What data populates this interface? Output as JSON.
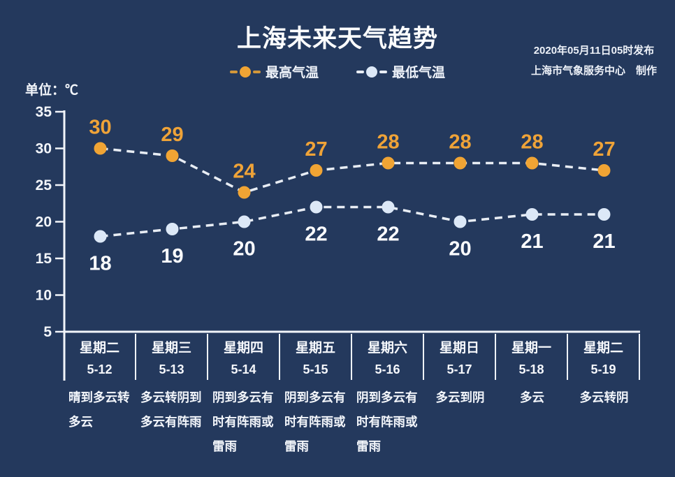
{
  "title": "上海未来天气趋势",
  "publish": {
    "line1": "2020年05月11日05时发布",
    "line2": "上海市气象服务中心　制作"
  },
  "unit_label": "单位：℃",
  "legend": [
    {
      "label": "最高气温"
    },
    {
      "label": "最低气温"
    }
  ],
  "colors": {
    "background": "#24395d",
    "axis": "#f2f5fa",
    "axis_label": "#f3f6fb",
    "line_dash": "#e8edf4",
    "high": "#f0a434",
    "high_label": "#efa338",
    "low": "#dce8f7",
    "low_label": "#fbfcfe",
    "legend_high_dash": "#d2973a",
    "legend_low_dash": "#e8edf4"
  },
  "chart_data": {
    "type": "line",
    "title": "上海未来天气趋势",
    "categories": [
      "星期二",
      "星期三",
      "星期四",
      "星期五",
      "星期六",
      "星期日",
      "星期一",
      "星期二"
    ],
    "dates": [
      "5-12",
      "5-13",
      "5-14",
      "5-15",
      "5-16",
      "5-17",
      "5-18",
      "5-19"
    ],
    "series": [
      {
        "name": "最高气温",
        "values": [
          30,
          29,
          24,
          27,
          28,
          28,
          28,
          27
        ],
        "color": "#f0a434"
      },
      {
        "name": "最低气温",
        "values": [
          18,
          19,
          20,
          22,
          22,
          20,
          21,
          21
        ],
        "color": "#dce8f7"
      }
    ],
    "weather": [
      "晴到多云转多云",
      "多云转阴到多云有阵雨",
      "阴到多云有时有阵雨或雷雨",
      "阴到多云有时有阵雨或雷雨",
      "阴到多云有时有阵雨或雷雨",
      "多云到阴",
      "多云",
      "多云转阴"
    ],
    "ylabel": "单位：℃",
    "unit": "℃",
    "yticks": [
      5,
      10,
      15,
      20,
      25,
      30,
      35
    ],
    "ylim": [
      5,
      35
    ],
    "grid": false,
    "line_style": "dashed",
    "legend_position": "top"
  }
}
